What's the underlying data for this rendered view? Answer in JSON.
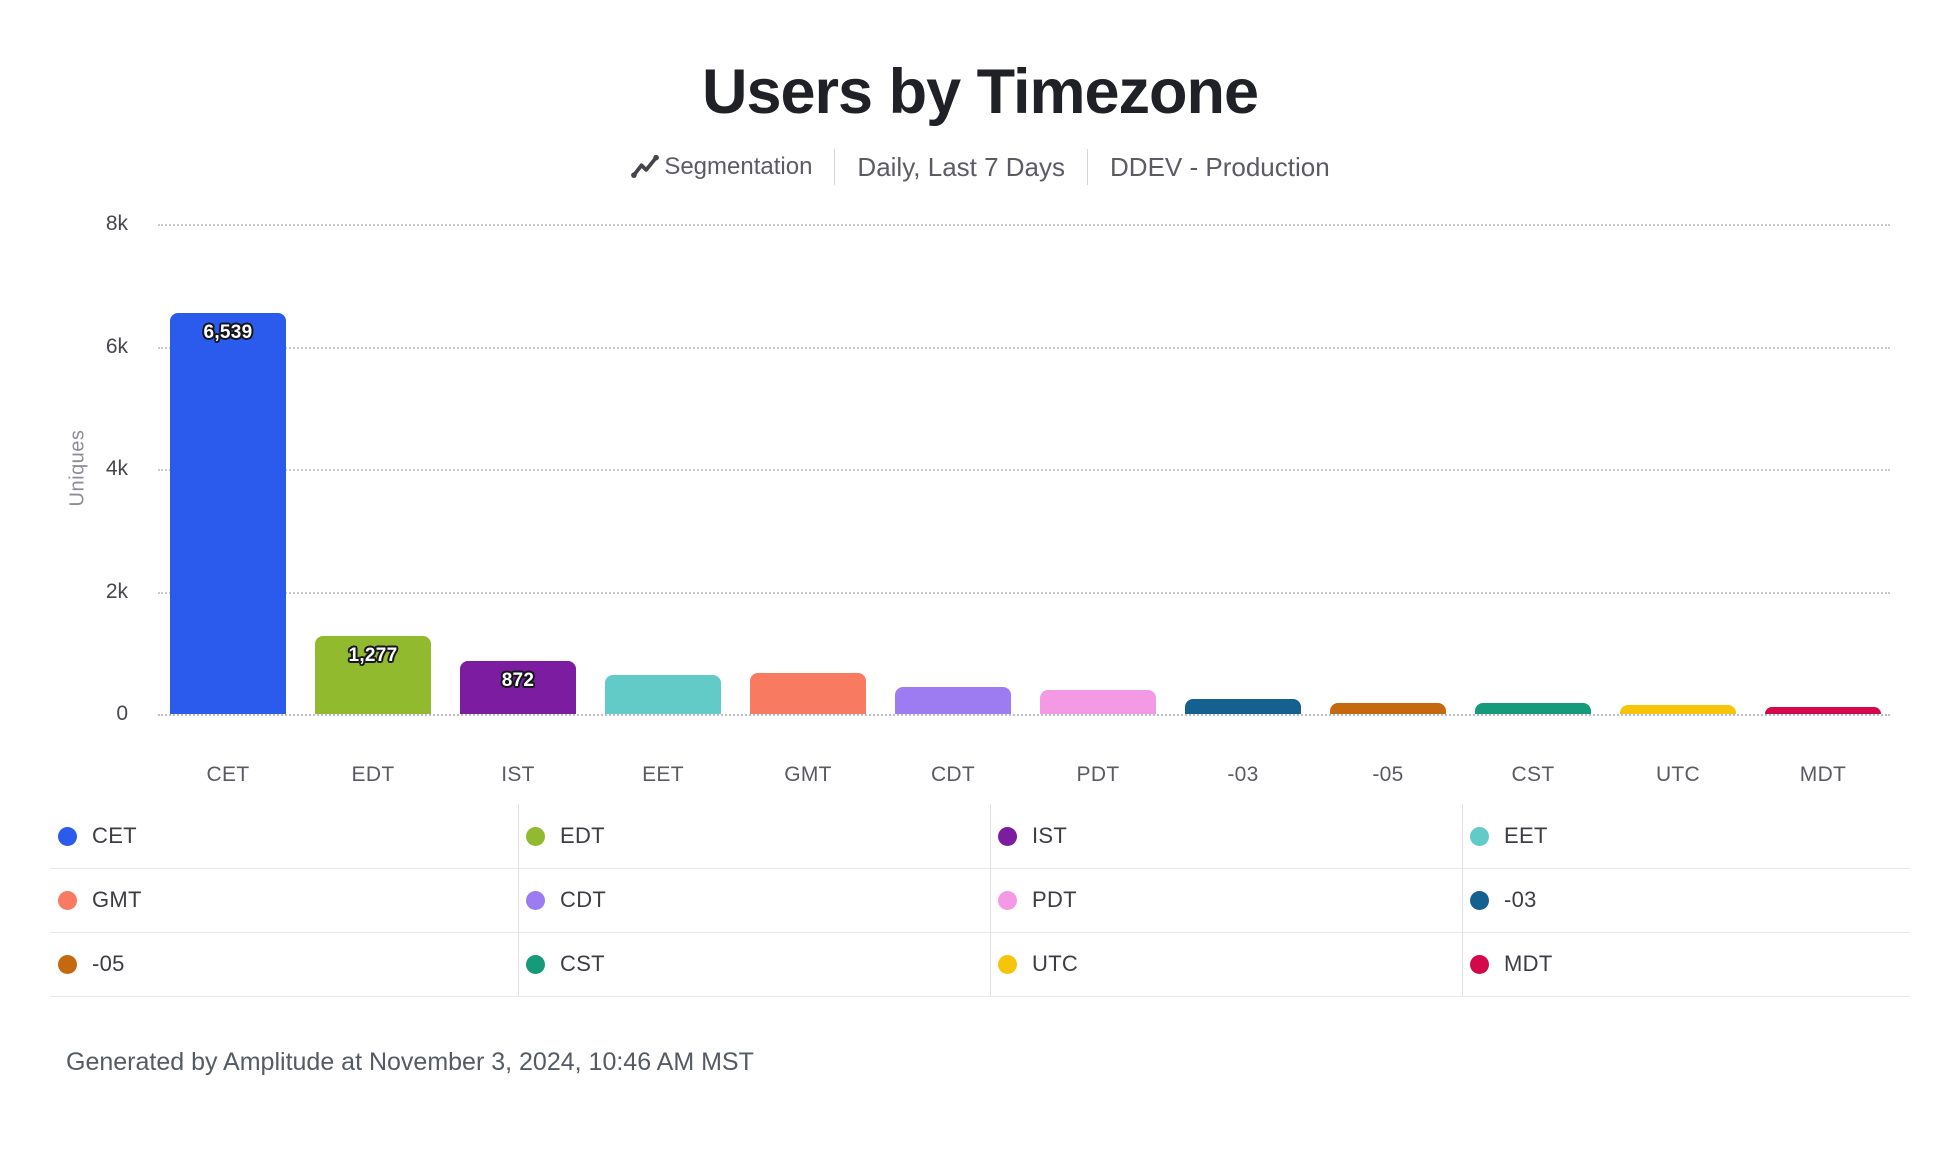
{
  "header": {
    "title": "Users by Timezone"
  },
  "subtitle": {
    "chart_type_label": "Segmentation",
    "date_range": "Daily, Last 7 Days",
    "project": "DDEV - Production"
  },
  "chart_data": {
    "type": "bar",
    "title": "Users by Timezone",
    "xlabel": "",
    "ylabel": "Uniques",
    "ylim": [
      0,
      8000
    ],
    "ytick_values": [
      0,
      2000,
      4000,
      6000,
      8000
    ],
    "ytick_labels": [
      "0",
      "2k",
      "4k",
      "6k",
      "8k"
    ],
    "grid": "dotted-horizontal",
    "legend_position": "bottom",
    "categories": [
      "CET",
      "EDT",
      "IST",
      "EET",
      "GMT",
      "CDT",
      "PDT",
      "-03",
      "-05",
      "CST",
      "UTC",
      "MDT"
    ],
    "values": [
      6539,
      1277,
      872,
      635,
      670,
      440,
      390,
      250,
      185,
      175,
      140,
      110
    ],
    "value_labels": [
      "6,539",
      "1,277",
      "872",
      "",
      "",
      "",
      "",
      "",
      "",
      "",
      "",
      ""
    ],
    "colors": [
      "#2a5bec",
      "#92ba2e",
      "#7c1ca1",
      "#62cbc8",
      "#f87a60",
      "#9c7cf0",
      "#f49ae5",
      "#14608f",
      "#c4690f",
      "#169a7c",
      "#f6c50a",
      "#d4094b"
    ]
  },
  "footer": {
    "text": "Generated by Amplitude at November 3, 2024, 10:46 AM MST"
  }
}
